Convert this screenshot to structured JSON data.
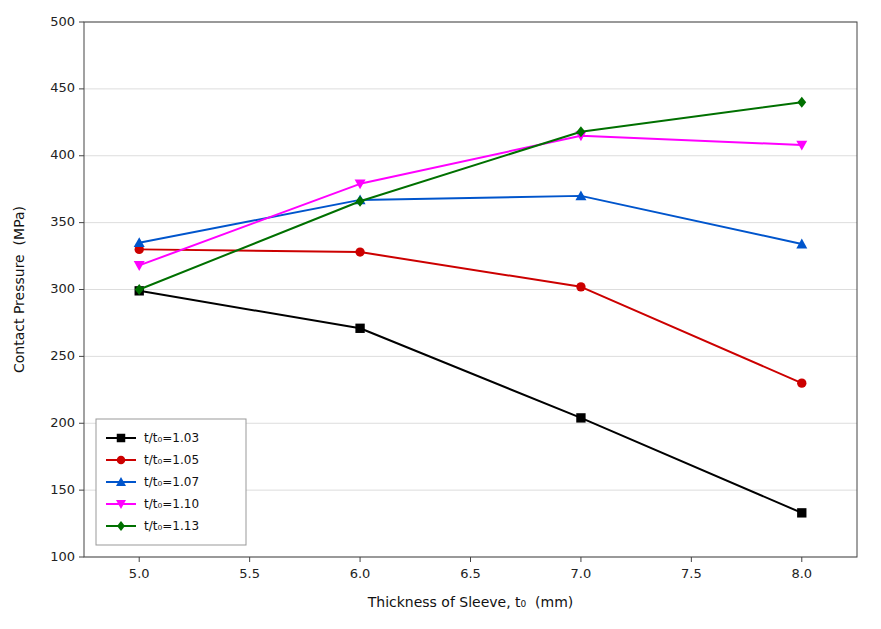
{
  "chart_data": {
    "type": "line",
    "x_label": "Thickness of Sleeve, t₀  (mm)",
    "y_label": "Contact Pressure  (MPa)",
    "x": [
      5.0,
      6.0,
      7.0,
      8.0
    ],
    "series": [
      {
        "name": "t/t₀=1.03",
        "color": "#000000",
        "marker": "square",
        "values": [
          299,
          271,
          204,
          133
        ]
      },
      {
        "name": "t/t₀=1.05",
        "color": "#cc0000",
        "marker": "circle",
        "values": [
          330,
          328,
          302,
          230
        ]
      },
      {
        "name": "t/t₀=1.07",
        "color": "#0055cc",
        "marker": "triangle-up",
        "values": [
          335,
          367,
          370,
          334
        ]
      },
      {
        "name": "t/t₀=1.10",
        "color": "#ff00ff",
        "marker": "triangle-down",
        "values": [
          318,
          379,
          415,
          408
        ]
      },
      {
        "name": "t/t₀=1.13",
        "color": "#007000",
        "marker": "diamond",
        "values": [
          300,
          366,
          418,
          440
        ]
      }
    ],
    "xlim": [
      4.75,
      8.25
    ],
    "ylim": [
      100,
      500
    ],
    "xticks": [
      {
        "value": 5.0,
        "label": "5.0"
      },
      {
        "value": 5.5,
        "label": "5.5"
      },
      {
        "value": 6.0,
        "label": "6.0"
      },
      {
        "value": 6.5,
        "label": "6.5"
      },
      {
        "value": 7.0,
        "label": "7.0"
      },
      {
        "value": 7.5,
        "label": "7.5"
      },
      {
        "value": 8.0,
        "label": "8.0"
      }
    ],
    "yticks": [
      100,
      150,
      200,
      250,
      300,
      350,
      400,
      450,
      500
    ],
    "grid": true,
    "legend": "lower-left"
  }
}
